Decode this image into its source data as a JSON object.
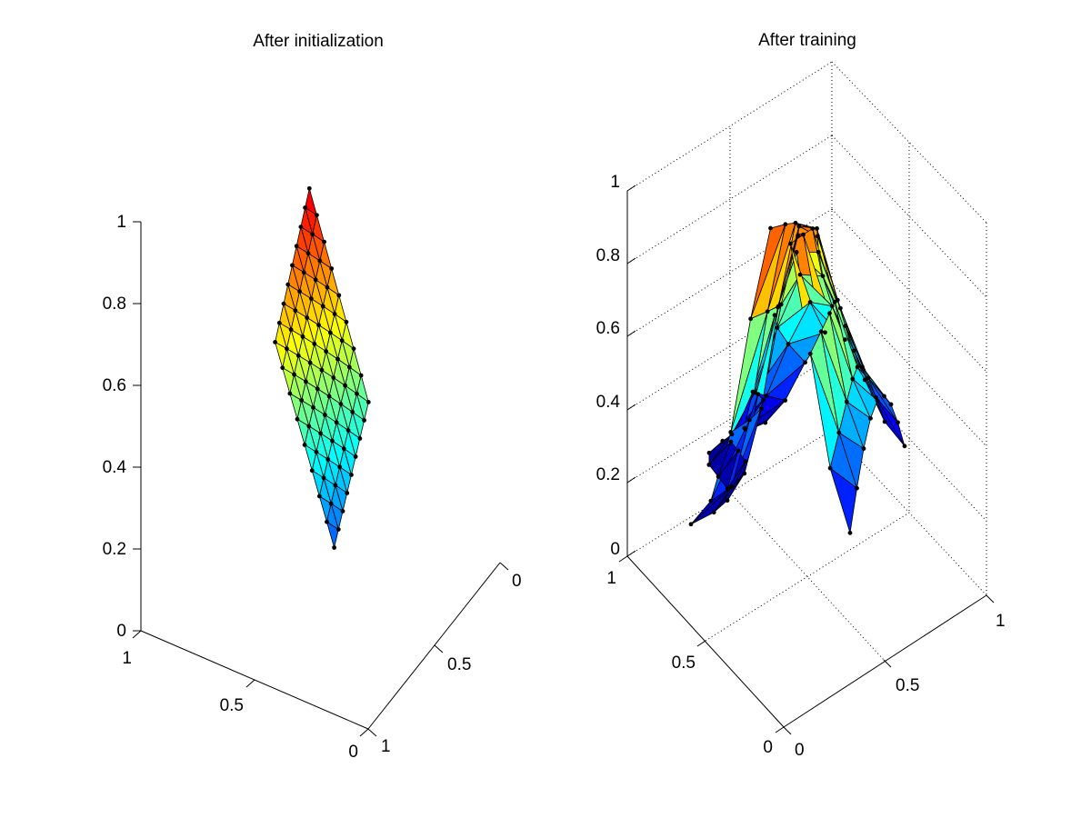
{
  "colors": {
    "background": "#ffffff",
    "mesh_edge": "#000000",
    "colormap": "jet"
  },
  "chart_data": [
    {
      "type": "surface",
      "title": "After initialization",
      "xlabel": "",
      "ylabel": "",
      "zlabel": "",
      "xlim": [
        0,
        1
      ],
      "ylim": [
        0,
        1
      ],
      "zlim": [
        0,
        1
      ],
      "ticks": {
        "x": [
          "0",
          "0.5",
          "1"
        ],
        "y": [
          "0",
          "0.5",
          "1"
        ],
        "z": [
          "0",
          "0.2",
          "0.4",
          "0.6",
          "0.8",
          "1"
        ]
      },
      "grid": false,
      "node_grid": "9x9 triangulated mesh",
      "corners": [
        {
          "x": 0.0,
          "y": 1.0,
          "z": 0.64
        },
        {
          "x": 0.0,
          "y": 0.0,
          "z": 0.91
        },
        {
          "x": 1.0,
          "y": 1.0,
          "z": 0.2
        },
        {
          "x": 1.0,
          "y": 0.0,
          "z": 0.45
        }
      ]
    },
    {
      "type": "surface",
      "title": "After training",
      "xlabel": "",
      "ylabel": "",
      "zlabel": "",
      "xlim": [
        0,
        1
      ],
      "ylim": [
        0,
        1
      ],
      "zlim": [
        0,
        1
      ],
      "ticks": {
        "x": [
          "0",
          "0.5",
          "1"
        ],
        "y": [
          "0",
          "0.5",
          "1"
        ],
        "z": [
          "0",
          "0.2",
          "0.4",
          "0.6",
          "0.8",
          "1"
        ]
      },
      "grid": true,
      "node_grid": "9x9 triangulated mesh",
      "description_values": {
        "peak_z": 0.9,
        "min_z": 0.0
      }
    }
  ]
}
